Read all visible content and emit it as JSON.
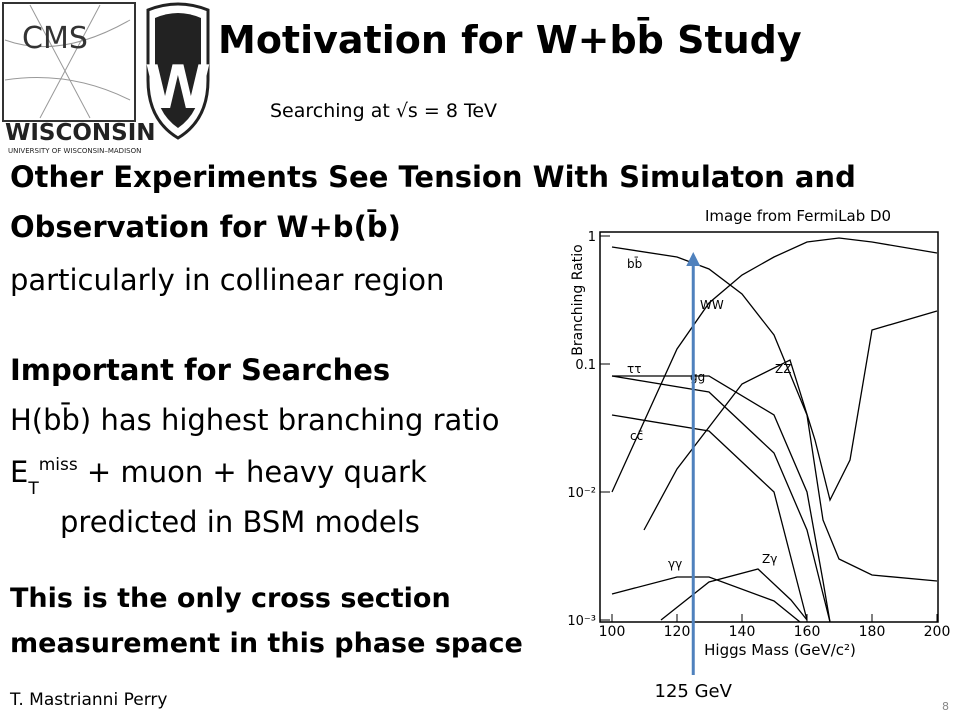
{
  "header": {
    "title": "Motivation for W+bb̄ Study",
    "subtitle": "Searching at √s = 8 TeV",
    "logos": [
      "CMS",
      "WISCONSIN",
      "UNIVERSITY OF WISCONSIN–MADISON"
    ]
  },
  "body": {
    "section1": {
      "heading1": "Other Experiments See Tension With Simulaton and",
      "heading2": "Observation for W+b(b̄)",
      "text": "particularly in collinear region"
    },
    "section2": {
      "heading": "Important for Searches",
      "line1": "H(bb̄) has highest branching ratio",
      "line2": {
        "base": "E",
        "sub": "T",
        "sup": "miss",
        "rest": " + muon +  heavy quark"
      },
      "line3": "predicted in BSM models"
    },
    "section3": {
      "line1": "This is the only cross section",
      "line2": "measurement in this phase space"
    }
  },
  "figure": {
    "credit": "Image from FermiLab D0",
    "xlabel": "Higgs Mass (GeV/c²)",
    "ylabel": "Branching Ratio",
    "xlim": [
      100,
      200
    ],
    "xticks": [
      100,
      120,
      140,
      160,
      180,
      200
    ],
    "ylim": [
      0.001,
      1
    ],
    "log_y": true,
    "yticks": [
      {
        "value": 1,
        "label": "1"
      },
      {
        "value": 0.1,
        "label": "0.1"
      },
      {
        "value": 0.01,
        "label": "10⁻²"
      },
      {
        "value": 0.001,
        "label": "10⁻³"
      }
    ],
    "curve_labels": [
      "bb̄",
      "WW",
      "ττ",
      "gg",
      "ZZ",
      "cc̄",
      "γγ",
      "Zγ"
    ],
    "marker": {
      "x": 125,
      "label": "125 GeV"
    }
  },
  "footer": {
    "author": "T. Mastrianni Perry",
    "page": "8"
  }
}
